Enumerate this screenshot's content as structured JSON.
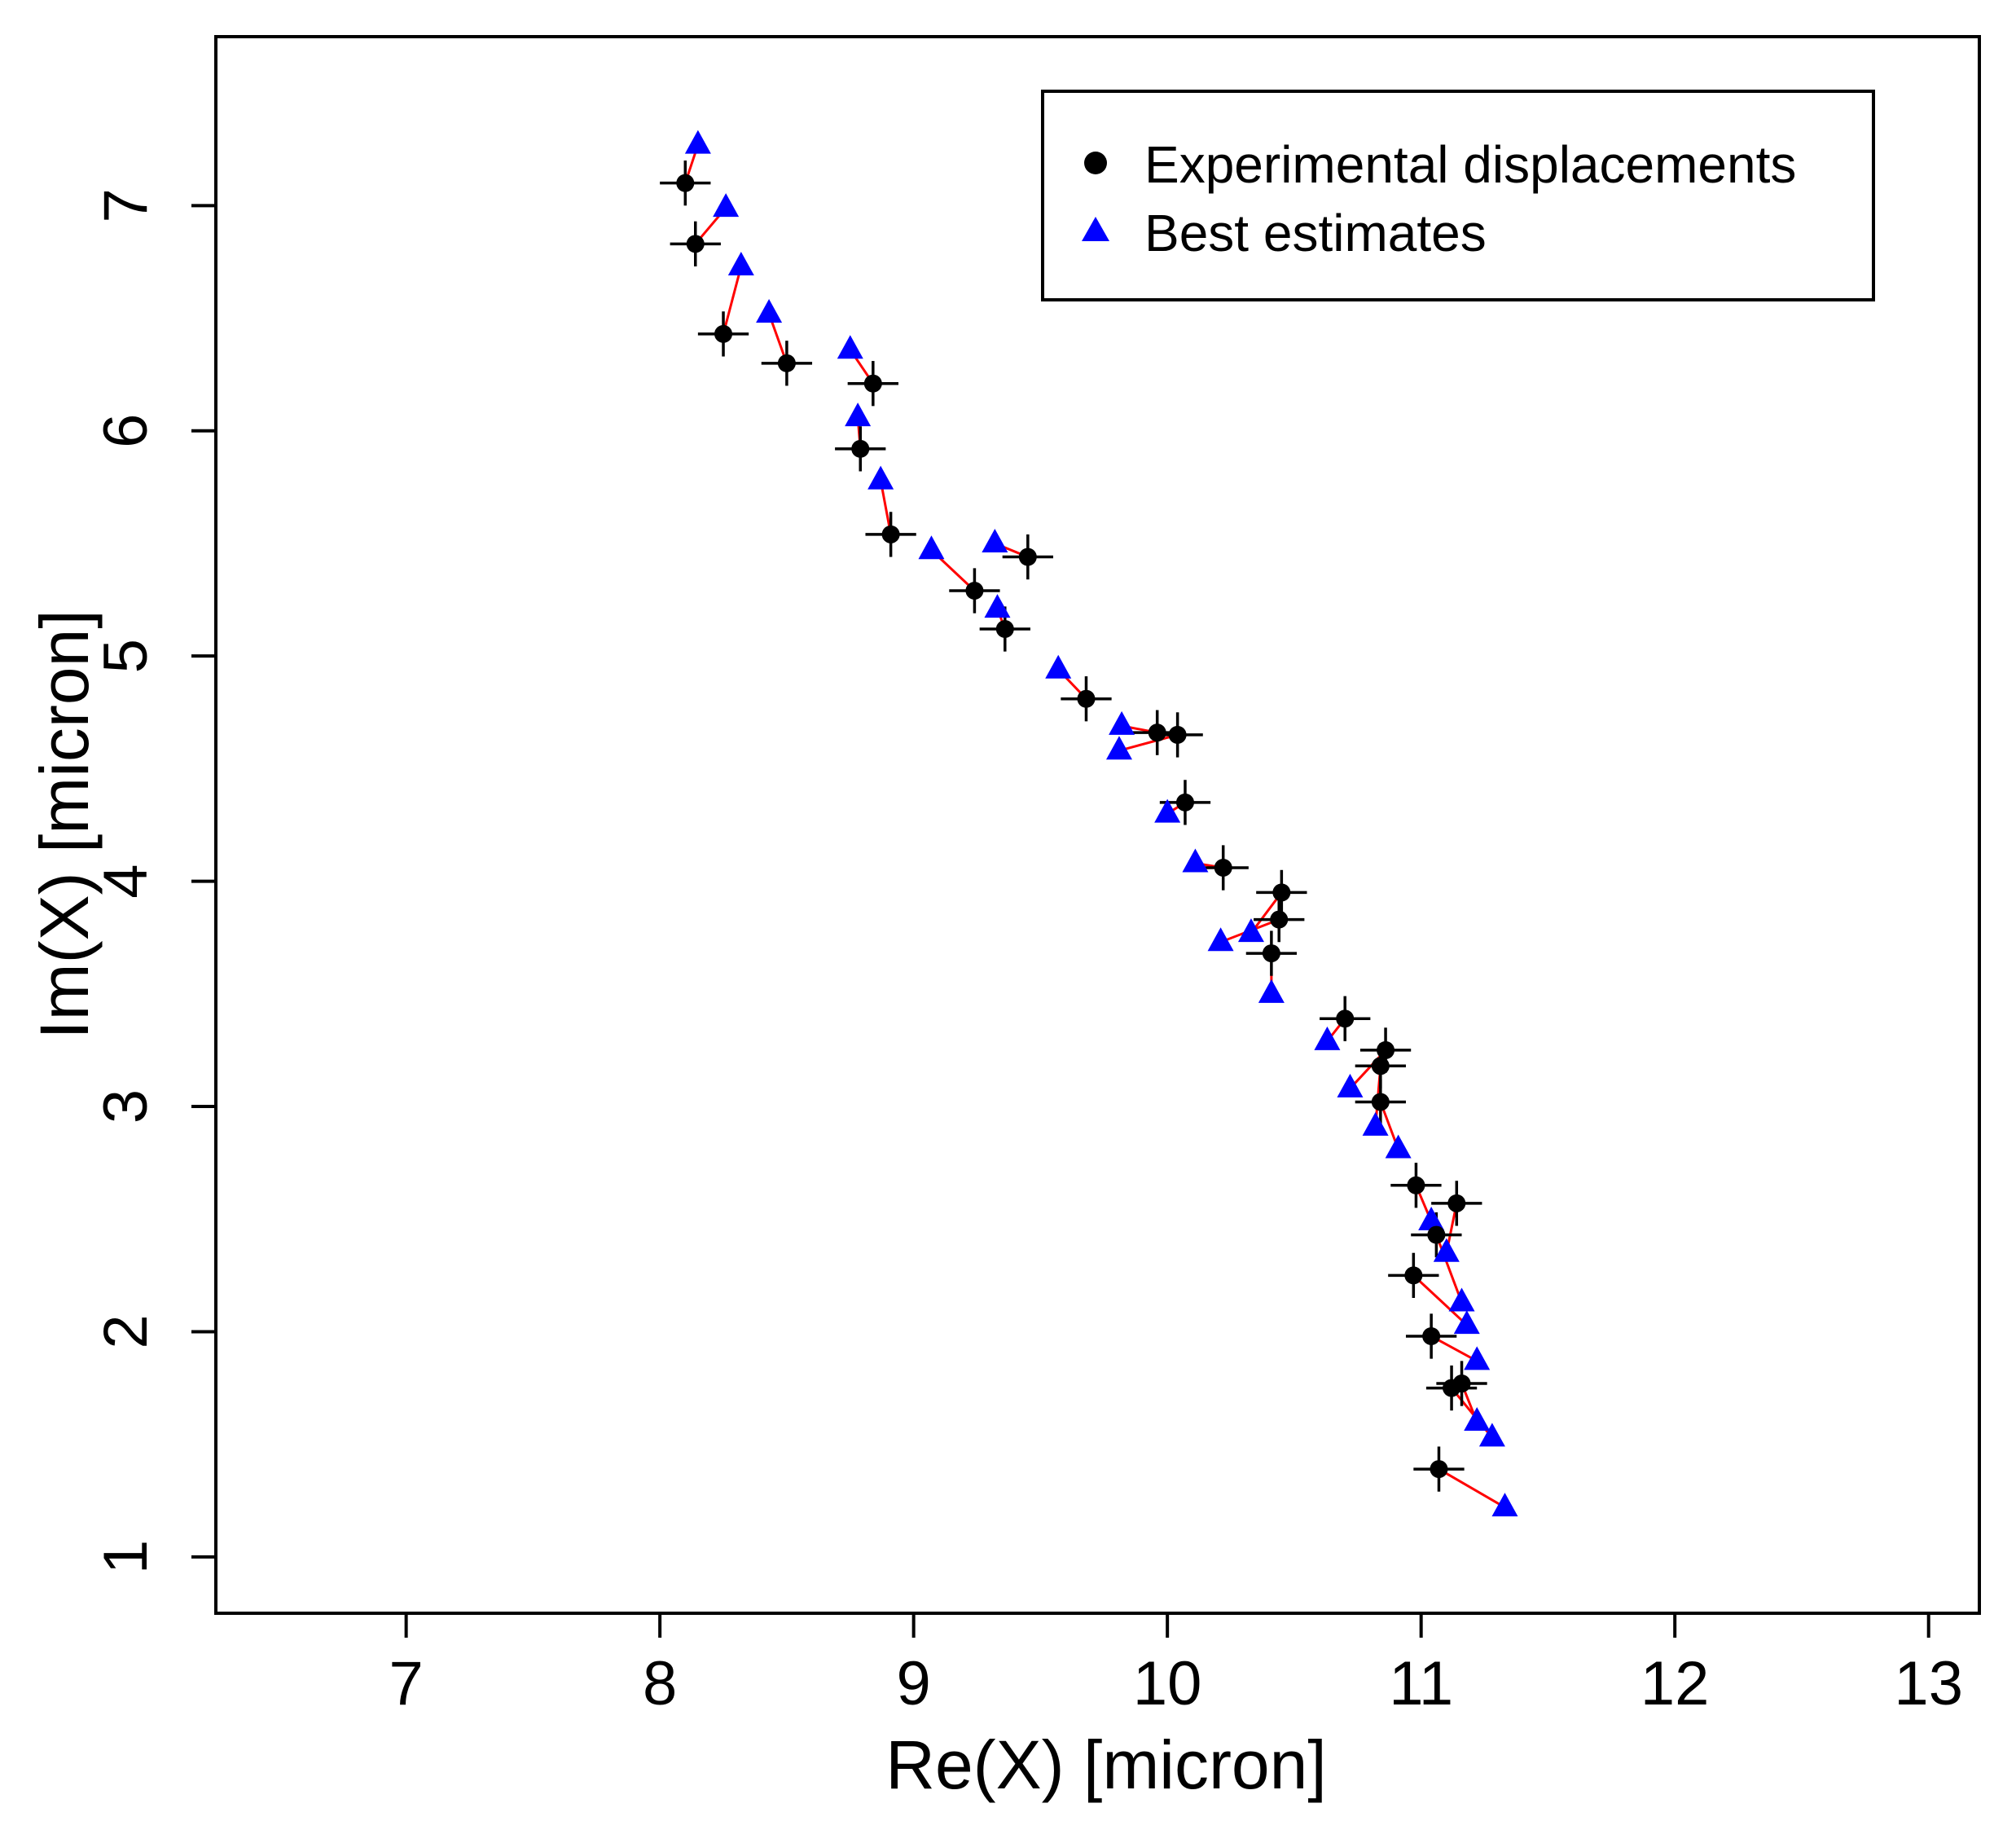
{
  "chart_data": {
    "type": "scatter",
    "title": "",
    "xlabel": "Re(X) [micron]",
    "ylabel": "Im(X) [micron]",
    "xlim": [
      6.25,
      13.2
    ],
    "ylim": [
      0.75,
      7.75
    ],
    "xticks": [
      7,
      8,
      9,
      10,
      11,
      12,
      13
    ],
    "yticks": [
      1,
      2,
      3,
      4,
      5,
      6,
      7
    ],
    "grid": false,
    "legend_position": "top-right",
    "colors": {
      "experimental": "#000000",
      "estimate": "#0000FF",
      "connector": "#FF0000"
    },
    "error_bar": {
      "x_half_width": 0.1,
      "y_half_width": 0.1
    },
    "series": [
      {
        "name": "Experimental displacements",
        "marker": "circle",
        "points": [
          [
            8.1,
            7.1
          ],
          [
            8.14,
            6.83
          ],
          [
            8.25,
            6.43
          ],
          [
            8.5,
            6.3
          ],
          [
            8.84,
            6.21
          ],
          [
            8.79,
            5.92
          ],
          [
            8.91,
            5.54
          ],
          [
            9.45,
            5.44
          ],
          [
            9.24,
            5.29
          ],
          [
            9.36,
            5.12
          ],
          [
            9.68,
            4.81
          ],
          [
            9.96,
            4.66
          ],
          [
            10.04,
            4.65
          ],
          [
            10.07,
            4.35
          ],
          [
            10.22,
            4.06
          ],
          [
            10.45,
            3.95
          ],
          [
            10.44,
            3.83
          ],
          [
            10.41,
            3.68
          ],
          [
            10.7,
            3.39
          ],
          [
            10.86,
            3.25
          ],
          [
            10.84,
            3.18
          ],
          [
            10.84,
            3.02
          ],
          [
            10.98,
            2.65
          ],
          [
            11.14,
            2.57
          ],
          [
            11.06,
            2.43
          ],
          [
            10.97,
            2.25
          ],
          [
            11.04,
            1.98
          ],
          [
            11.16,
            1.77
          ],
          [
            11.12,
            1.75
          ],
          [
            11.07,
            1.39
          ]
        ]
      },
      {
        "name": "Best estimates",
        "marker": "triangle",
        "points": [
          [
            8.15,
            7.27
          ],
          [
            8.26,
            6.99
          ],
          [
            8.32,
            6.73
          ],
          [
            8.43,
            6.52
          ],
          [
            8.75,
            6.36
          ],
          [
            8.78,
            6.06
          ],
          [
            8.87,
            5.78
          ],
          [
            9.32,
            5.5
          ],
          [
            9.07,
            5.47
          ],
          [
            9.33,
            5.21
          ],
          [
            9.57,
            4.94
          ],
          [
            9.82,
            4.69
          ],
          [
            9.81,
            4.58
          ],
          [
            10.0,
            4.3
          ],
          [
            10.11,
            4.08
          ],
          [
            10.33,
            3.77
          ],
          [
            10.21,
            3.73
          ],
          [
            10.41,
            3.5
          ],
          [
            10.63,
            3.29
          ],
          [
            10.72,
            3.08
          ],
          [
            10.82,
            2.91
          ],
          [
            10.91,
            2.81
          ],
          [
            11.04,
            2.49
          ],
          [
            11.1,
            2.35
          ],
          [
            11.16,
            2.13
          ],
          [
            11.18,
            2.03
          ],
          [
            11.22,
            1.87
          ],
          [
            11.22,
            1.6
          ],
          [
            11.28,
            1.53
          ],
          [
            11.33,
            1.22
          ]
        ]
      }
    ]
  }
}
